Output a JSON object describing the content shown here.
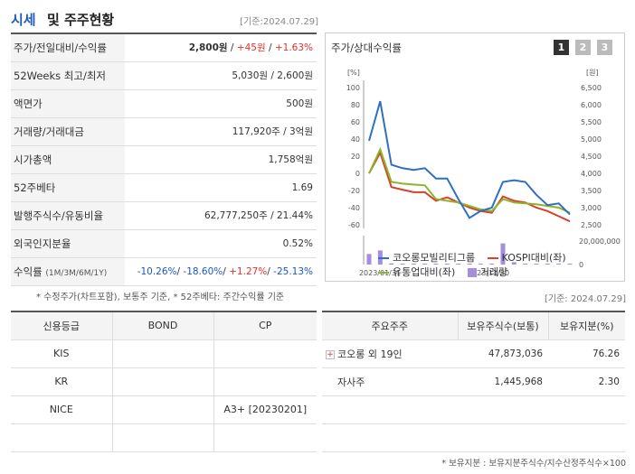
{
  "header": {
    "title_accent": "시세",
    "title_rest": "및 주주현황",
    "date": "[기준:2024.07.29]"
  },
  "stats": [
    {
      "label": "주가/전일대비/수익률",
      "price": "2,800원",
      "sep1": " / ",
      "change": "+45원",
      "sep2": " / ",
      "pct": "+1.63%"
    },
    {
      "label": "52Weeks 최고/최저",
      "value": "5,030원 / 2,600원"
    },
    {
      "label": "액면가",
      "value": "500원"
    },
    {
      "label": "거래량/거래대금",
      "value": "117,920주 / 3억원"
    },
    {
      "label": "시가총액",
      "value": "1,758억원"
    },
    {
      "label": "52주베타",
      "value": "1.69"
    },
    {
      "label": "발행주식수/유동비율",
      "value": "62,777,250주 / 21.44%"
    },
    {
      "label": "외국인지분율",
      "value": "0.52%"
    },
    {
      "label": "수익률",
      "label_small": "(1M/3M/6M/1Y)",
      "r1": "-10.26%",
      "r2": "-18.60%",
      "r3": "+1.27%",
      "r4": "-25.13%",
      "sep": "/ "
    }
  ],
  "note_left": "* 수정주가(차트포함), 보통주 기준, * 52주베타: 주간수익률 기준",
  "chart": {
    "title": "주가/상대수익률",
    "buttons": [
      "1",
      "2",
      "3"
    ],
    "left_unit": "[%]",
    "right_unit": "[원]",
    "left_ticks": [
      "100",
      "80",
      "60",
      "40",
      "20",
      "0",
      "-20",
      "-40",
      "-60"
    ],
    "right_ticks": [
      "6,500",
      "6,000",
      "5,500",
      "5,000",
      "4,500",
      "4,000",
      "3,500",
      "3,000",
      "2,500"
    ],
    "volume_tick": "20,000,000",
    "volume_zero": "0",
    "x_ticks": [
      "2023/01/31",
      "2023/11/30"
    ],
    "legend": {
      "s1": "코오롱모빌리티그룹",
      "s2": "KOSPI대비(좌)",
      "s3": "유통업대비(좌)",
      "s4": "거래량"
    },
    "colors": {
      "s1": "#2d6fc4",
      "s2": "#d8402a",
      "s3": "#8ab62c",
      "s4": "#a48ee0"
    }
  },
  "chart_data": {
    "type": "line",
    "ylim": [
      -60,
      100
    ],
    "y2lim": [
      2500,
      6500
    ],
    "series": [
      {
        "name": "코오롱모빌리티그룹",
        "values": [
          38,
          84,
          10,
          6,
          4,
          6,
          -6,
          -6,
          -30,
          -52,
          -44,
          -40,
          -10,
          -8,
          -10,
          -25,
          -37,
          -35,
          -48
        ]
      },
      {
        "name": "KOSPI대비(좌)",
        "values": [
          0,
          24,
          -16,
          -19,
          -22,
          -22,
          -32,
          -28,
          -34,
          -40,
          -44,
          -46,
          -27,
          -32,
          -34,
          -40,
          -44,
          -50,
          -56
        ]
      },
      {
        "name": "유통업대비(좌)",
        "values": [
          0,
          28,
          -10,
          -12,
          -13,
          -14,
          -30,
          -32,
          -34,
          -38,
          -42,
          -44,
          -30,
          -34,
          -35,
          -36,
          -38,
          -40,
          -46
        ]
      },
      {
        "name": "거래량",
        "values": [
          9000000,
          12000000,
          1000000,
          500000,
          400000,
          300000,
          300000,
          200000,
          300000,
          200000,
          200000,
          300000,
          18000000,
          2000000,
          300000,
          200000,
          200000,
          200000,
          200000
        ]
      }
    ]
  },
  "date2": "[기준: 2024.07.29]",
  "credit": {
    "headers": [
      "신용등급",
      "BOND",
      "CP"
    ],
    "rows": [
      [
        "KIS",
        "",
        ""
      ],
      [
        "KR",
        "",
        ""
      ],
      [
        "NICE",
        "",
        "A3+ [20230201]"
      ],
      [
        "",
        "",
        ""
      ]
    ]
  },
  "owners": {
    "headers": [
      "주요주주",
      "보유주식수(보통)",
      "보유지분(%)"
    ],
    "rows": [
      {
        "name": "코오롱 외 19인",
        "shares": "47,873,036",
        "pct": "76.26",
        "expand": "+"
      },
      {
        "name": "자사주",
        "shares": "1,445,968",
        "pct": "2.30"
      }
    ]
  },
  "note_right": "* 보유지분 : 보유지분주식수/지수산정주식수×100"
}
